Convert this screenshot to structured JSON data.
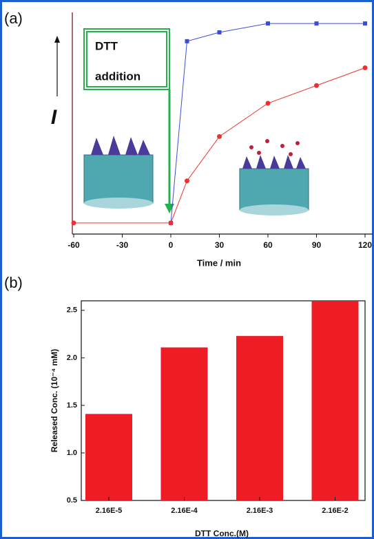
{
  "chart_data": [
    {
      "type": "line",
      "label": "(a)",
      "xlabel": "Time / min",
      "ylabel": "I",
      "annotation": [
        "DTT",
        "addition"
      ],
      "xlim": [
        -60,
        120
      ],
      "xticks": [
        -60,
        -30,
        0,
        30,
        60,
        90,
        120
      ],
      "ylim": [
        0,
        100
      ],
      "series": [
        {
          "color": "#3a4fd6",
          "marker": "square",
          "x": [
            0,
            10,
            30,
            60,
            90,
            120
          ],
          "values": [
            5,
            87,
            91,
            95,
            95,
            95
          ]
        },
        {
          "color": "#f03030",
          "marker": "circle",
          "x": [
            -60,
            0,
            10,
            30,
            60,
            90,
            120
          ],
          "values": [
            5,
            5,
            24,
            44,
            59,
            67,
            75
          ]
        }
      ]
    },
    {
      "type": "bar",
      "label": "(b)",
      "xlabel": "DTT Conc.(M)",
      "ylabel": "Released Conc. (10⁻⁴ mM)",
      "categories": [
        "2.16E-5",
        "2.16E-4",
        "2.16E-3",
        "2.16E-2"
      ],
      "values": [
        1.41,
        2.11,
        2.23,
        2.6
      ],
      "color": "#ee1c25",
      "ylim": [
        0.5,
        2.6
      ],
      "yticks": [
        0.5,
        {
          "value": 1,
          "label": "1.0"
        },
        1.5,
        {
          "value": 2,
          "label": "2.0"
        },
        2.5
      ]
    }
  ]
}
